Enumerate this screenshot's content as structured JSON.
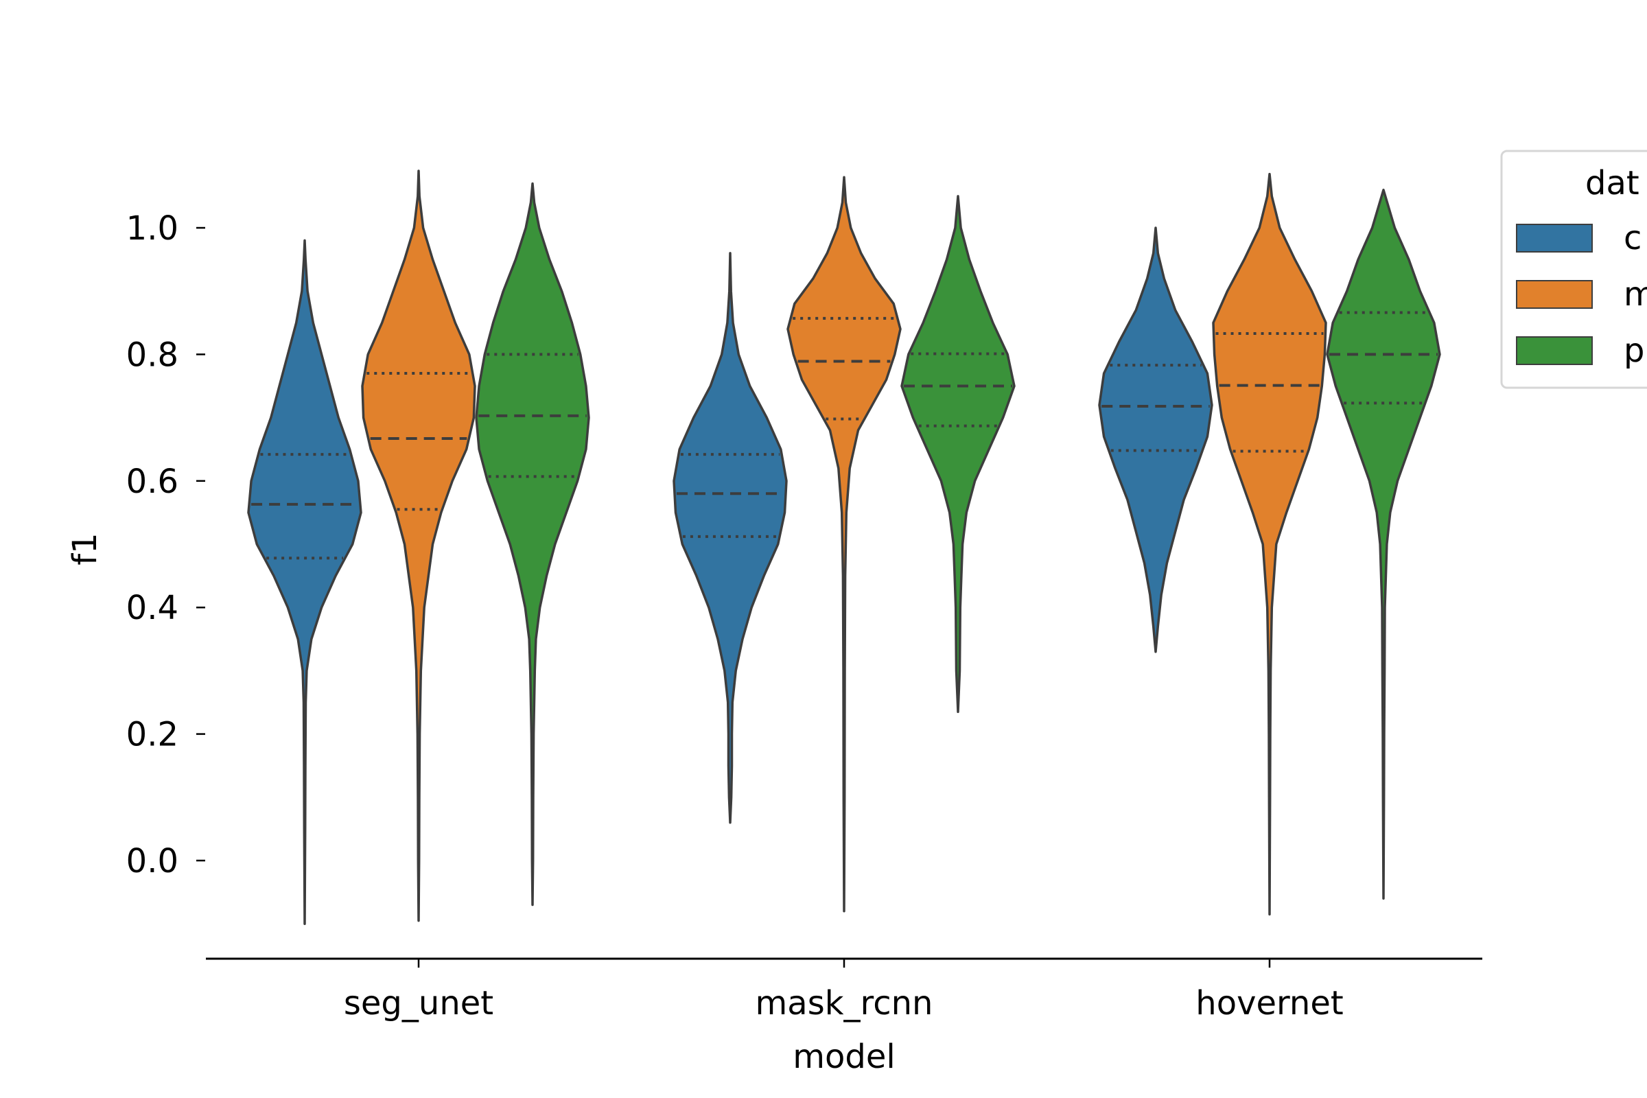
{
  "chart_data": {
    "type": "violin",
    "title": "",
    "xlabel": "model",
    "ylabel": "f1",
    "categories": [
      "seg_unet",
      "mask_rcnn",
      "hovernet"
    ],
    "ylim": [
      -0.155,
      1.285
    ],
    "yticks": [
      "0.0",
      "0.2",
      "0.4",
      "0.6",
      "0.8",
      "1.0"
    ],
    "grid": false,
    "legend": {
      "title": "dat",
      "position": "right",
      "entries": [
        "c",
        "m",
        "p"
      ]
    },
    "series": [
      {
        "legend_label": "c",
        "color": "#3274a1",
        "violins": [
          {
            "category": "seg_unet",
            "min": -0.1,
            "max": 0.98,
            "q1": 0.478,
            "median": 0.563,
            "q3": 0.642,
            "profile": [
              [
                -0.1,
                0.0
              ],
              [
                0.05,
                0.008
              ],
              [
                0.15,
                0.012
              ],
              [
                0.25,
                0.018
              ],
              [
                0.3,
                0.035
              ],
              [
                0.35,
                0.12
              ],
              [
                0.4,
                0.3
              ],
              [
                0.45,
                0.55
              ],
              [
                0.5,
                0.85
              ],
              [
                0.55,
                1.0
              ],
              [
                0.6,
                0.95
              ],
              [
                0.65,
                0.8
              ],
              [
                0.7,
                0.6
              ],
              [
                0.75,
                0.45
              ],
              [
                0.8,
                0.3
              ],
              [
                0.85,
                0.15
              ],
              [
                0.9,
                0.05
              ],
              [
                0.95,
                0.015
              ],
              [
                0.98,
                0.0
              ]
            ]
          },
          {
            "category": "mask_rcnn",
            "min": 0.06,
            "max": 0.96,
            "q1": 0.512,
            "median": 0.58,
            "q3": 0.642,
            "profile": [
              [
                0.06,
                0.0
              ],
              [
                0.1,
                0.02
              ],
              [
                0.15,
                0.03
              ],
              [
                0.2,
                0.03
              ],
              [
                0.25,
                0.04
              ],
              [
                0.3,
                0.1
              ],
              [
                0.35,
                0.22
              ],
              [
                0.4,
                0.38
              ],
              [
                0.45,
                0.6
              ],
              [
                0.5,
                0.85
              ],
              [
                0.55,
                0.97
              ],
              [
                0.6,
                1.0
              ],
              [
                0.65,
                0.9
              ],
              [
                0.7,
                0.65
              ],
              [
                0.75,
                0.35
              ],
              [
                0.8,
                0.15
              ],
              [
                0.85,
                0.05
              ],
              [
                0.9,
                0.015
              ],
              [
                0.96,
                0.0
              ]
            ]
          },
          {
            "category": "hovernet",
            "min": 0.33,
            "max": 1.0,
            "q1": 0.648,
            "median": 0.718,
            "q3": 0.783,
            "profile": [
              [
                0.33,
                0.0
              ],
              [
                0.37,
                0.04
              ],
              [
                0.42,
                0.1
              ],
              [
                0.47,
                0.2
              ],
              [
                0.52,
                0.35
              ],
              [
                0.57,
                0.5
              ],
              [
                0.62,
                0.72
              ],
              [
                0.67,
                0.92
              ],
              [
                0.72,
                1.0
              ],
              [
                0.77,
                0.92
              ],
              [
                0.82,
                0.65
              ],
              [
                0.87,
                0.35
              ],
              [
                0.92,
                0.15
              ],
              [
                0.96,
                0.04
              ],
              [
                1.0,
                0.0
              ]
            ]
          }
        ]
      },
      {
        "legend_label": "m",
        "color": "#e1812c",
        "violins": [
          {
            "category": "seg_unet",
            "min": -0.095,
            "max": 1.09,
            "q1": 0.555,
            "median": 0.667,
            "q3": 0.77,
            "profile": [
              [
                -0.095,
                0.0
              ],
              [
                0.0,
                0.008
              ],
              [
                0.1,
                0.012
              ],
              [
                0.2,
                0.02
              ],
              [
                0.3,
                0.04
              ],
              [
                0.4,
                0.1
              ],
              [
                0.5,
                0.25
              ],
              [
                0.55,
                0.4
              ],
              [
                0.6,
                0.6
              ],
              [
                0.65,
                0.85
              ],
              [
                0.7,
                0.98
              ],
              [
                0.75,
                1.0
              ],
              [
                0.8,
                0.9
              ],
              [
                0.85,
                0.65
              ],
              [
                0.9,
                0.45
              ],
              [
                0.95,
                0.25
              ],
              [
                1.0,
                0.08
              ],
              [
                1.05,
                0.015
              ],
              [
                1.09,
                0.0
              ]
            ]
          },
          {
            "category": "mask_rcnn",
            "min": -0.08,
            "max": 1.08,
            "q1": 0.698,
            "median": 0.789,
            "q3": 0.857,
            "profile": [
              [
                -0.08,
                0.0
              ],
              [
                0.1,
                0.008
              ],
              [
                0.3,
                0.012
              ],
              [
                0.45,
                0.02
              ],
              [
                0.55,
                0.04
              ],
              [
                0.62,
                0.1
              ],
              [
                0.68,
                0.25
              ],
              [
                0.72,
                0.5
              ],
              [
                0.76,
                0.75
              ],
              [
                0.8,
                0.9
              ],
              [
                0.84,
                1.0
              ],
              [
                0.88,
                0.88
              ],
              [
                0.92,
                0.55
              ],
              [
                0.96,
                0.3
              ],
              [
                1.0,
                0.12
              ],
              [
                1.04,
                0.03
              ],
              [
                1.08,
                0.0
              ]
            ]
          },
          {
            "category": "hovernet",
            "min": -0.085,
            "max": 1.085,
            "q1": 0.647,
            "median": 0.751,
            "q3": 0.833,
            "profile": [
              [
                -0.085,
                0.0
              ],
              [
                0.1,
                0.008
              ],
              [
                0.2,
                0.012
              ],
              [
                0.3,
                0.02
              ],
              [
                0.4,
                0.04
              ],
              [
                0.5,
                0.12
              ],
              [
                0.55,
                0.3
              ],
              [
                0.6,
                0.5
              ],
              [
                0.65,
                0.7
              ],
              [
                0.7,
                0.85
              ],
              [
                0.75,
                0.93
              ],
              [
                0.8,
                0.98
              ],
              [
                0.85,
                1.0
              ],
              [
                0.9,
                0.75
              ],
              [
                0.95,
                0.45
              ],
              [
                1.0,
                0.18
              ],
              [
                1.05,
                0.04
              ],
              [
                1.085,
                0.0
              ]
            ]
          }
        ]
      },
      {
        "legend_label": "p",
        "color": "#3a923a",
        "violins": [
          {
            "category": "seg_unet",
            "min": -0.07,
            "max": 1.07,
            "q1": 0.607,
            "median": 0.703,
            "q3": 0.8,
            "profile": [
              [
                -0.07,
                0.0
              ],
              [
                0.0,
                0.008
              ],
              [
                0.1,
                0.012
              ],
              [
                0.2,
                0.02
              ],
              [
                0.3,
                0.04
              ],
              [
                0.35,
                0.06
              ],
              [
                0.4,
                0.13
              ],
              [
                0.45,
                0.25
              ],
              [
                0.5,
                0.4
              ],
              [
                0.55,
                0.6
              ],
              [
                0.6,
                0.8
              ],
              [
                0.65,
                0.95
              ],
              [
                0.7,
                1.0
              ],
              [
                0.75,
                0.95
              ],
              [
                0.8,
                0.85
              ],
              [
                0.85,
                0.7
              ],
              [
                0.9,
                0.52
              ],
              [
                0.95,
                0.3
              ],
              [
                1.0,
                0.12
              ],
              [
                1.04,
                0.03
              ],
              [
                1.07,
                0.0
              ]
            ]
          },
          {
            "category": "mask_rcnn",
            "min": 0.235,
            "max": 1.05,
            "q1": 0.687,
            "median": 0.75,
            "q3": 0.801,
            "profile": [
              [
                0.235,
                0.0
              ],
              [
                0.3,
                0.03
              ],
              [
                0.4,
                0.04
              ],
              [
                0.45,
                0.06
              ],
              [
                0.5,
                0.08
              ],
              [
                0.55,
                0.15
              ],
              [
                0.6,
                0.3
              ],
              [
                0.65,
                0.55
              ],
              [
                0.7,
                0.8
              ],
              [
                0.75,
                1.0
              ],
              [
                0.8,
                0.88
              ],
              [
                0.85,
                0.62
              ],
              [
                0.9,
                0.4
              ],
              [
                0.95,
                0.2
              ],
              [
                1.0,
                0.05
              ],
              [
                1.05,
                0.0
              ]
            ]
          },
          {
            "category": "hovernet",
            "min": -0.06,
            "max": 1.06,
            "q1": 0.723,
            "median": 0.8,
            "q3": 0.866,
            "profile": [
              [
                -0.06,
                0.0
              ],
              [
                0.1,
                0.008
              ],
              [
                0.2,
                0.012
              ],
              [
                0.3,
                0.02
              ],
              [
                0.4,
                0.025
              ],
              [
                0.5,
                0.06
              ],
              [
                0.55,
                0.12
              ],
              [
                0.6,
                0.25
              ],
              [
                0.65,
                0.45
              ],
              [
                0.7,
                0.65
              ],
              [
                0.75,
                0.85
              ],
              [
                0.8,
                1.0
              ],
              [
                0.85,
                0.9
              ],
              [
                0.9,
                0.65
              ],
              [
                0.95,
                0.45
              ],
              [
                1.0,
                0.2
              ],
              [
                1.06,
                0.0
              ]
            ]
          }
        ]
      }
    ]
  }
}
